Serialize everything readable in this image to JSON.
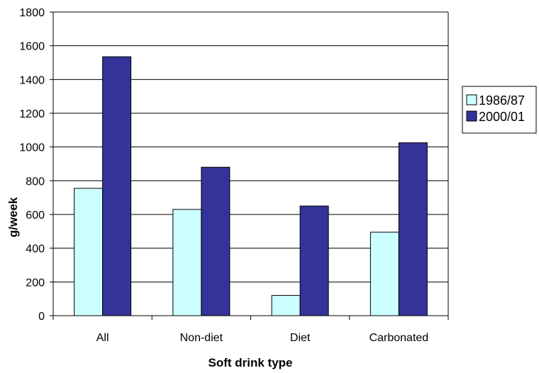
{
  "chart_data": {
    "type": "bar",
    "categories": [
      "All",
      "Non-diet",
      "Diet",
      "Carbonated"
    ],
    "series": [
      {
        "name": "1986/87",
        "values": [
          755,
          630,
          120,
          495
        ],
        "color": "#ccffff"
      },
      {
        "name": "2000/01",
        "values": [
          1535,
          880,
          650,
          1025
        ],
        "color": "#333399"
      }
    ],
    "xlabel": "Soft drink type",
    "ylabel": "g/week",
    "ylim": [
      0,
      1800
    ],
    "yticks": [
      0,
      200,
      400,
      600,
      800,
      1000,
      1200,
      1400,
      1600,
      1800
    ],
    "grid": true,
    "legend_position": "right"
  }
}
